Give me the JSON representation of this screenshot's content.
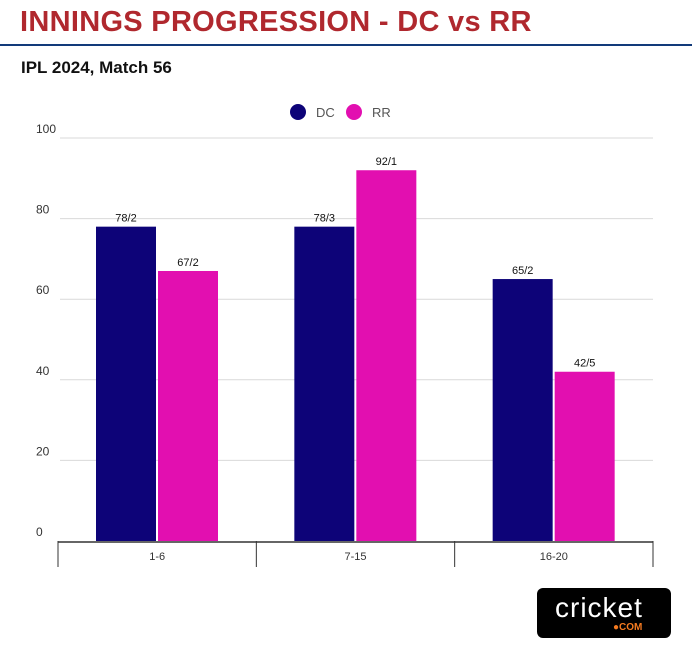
{
  "header": {
    "title": "INNINGS PROGRESSION - DC vs RR",
    "subtitle": "IPL 2024, Match 56"
  },
  "logo": {
    "word": "cricket",
    "suffix": "●COM"
  },
  "chart_data": {
    "type": "bar",
    "title": "INNINGS PROGRESSION - DC vs RR",
    "subtitle": "IPL 2024, Match 56",
    "categories": [
      "1-6",
      "7-15",
      "16-20"
    ],
    "series": [
      {
        "name": "DC",
        "color": "#0d0378",
        "values": [
          78,
          78,
          65
        ],
        "labels": [
          "78/2",
          "78/3",
          "65/2"
        ]
      },
      {
        "name": "RR",
        "color": "#e20fb0",
        "values": [
          67,
          92,
          42
        ],
        "labels": [
          "67/2",
          "92/1",
          "42/5"
        ]
      }
    ],
    "ylim": [
      0,
      100
    ],
    "yticks": [
      0,
      20,
      40,
      60,
      80,
      100
    ],
    "xlabel": "",
    "ylabel": "",
    "grid": true,
    "legend": "top-center"
  }
}
